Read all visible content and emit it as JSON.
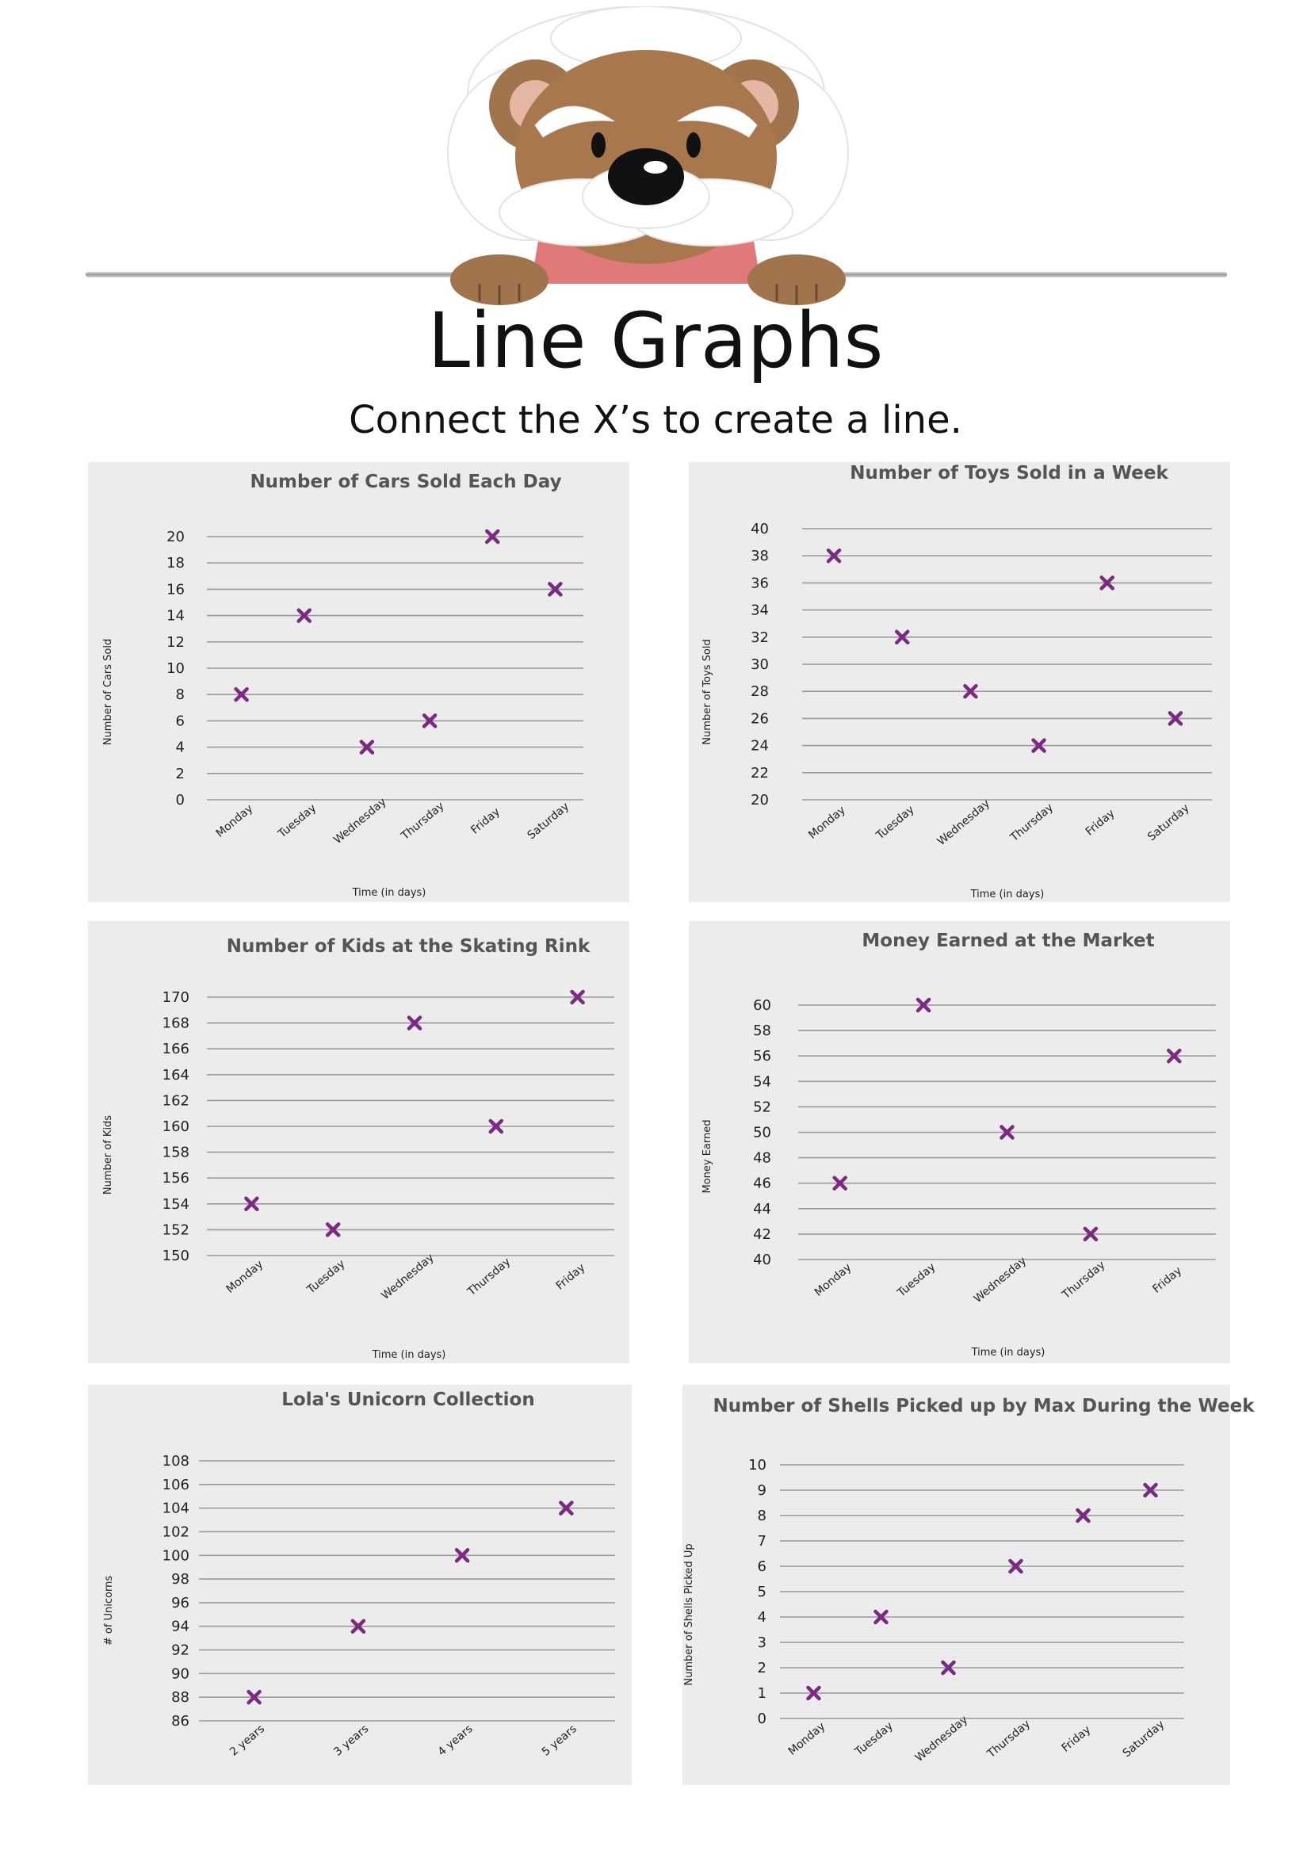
{
  "header": {
    "title": "Line Graphs",
    "subtitle": "Connect the X’s to create a line."
  },
  "colors": {
    "mark": "#7a2a80",
    "panel": "#ececec",
    "grid": "#9a9a9a"
  },
  "chart_data": [
    {
      "type": "line",
      "title": "Number of Cars Sold Each Day",
      "xlabel": "Time (in days)",
      "ylabel": "Number of Cars Sold",
      "categories": [
        "Monday",
        "Tuesday",
        "Wednesday",
        "Thursday",
        "Friday",
        "Saturday"
      ],
      "values": [
        8,
        14,
        4,
        6,
        20,
        16
      ],
      "yticks": [
        0,
        2,
        4,
        6,
        8,
        10,
        12,
        14,
        16,
        18,
        20
      ],
      "ylim": [
        0,
        20
      ],
      "grid": true
    },
    {
      "type": "line",
      "title": "Number of Toys Sold in a Week",
      "xlabel": "Time (in days)",
      "ylabel": "Number of Toys Sold",
      "categories": [
        "Monday",
        "Tuesday",
        "Wednesday",
        "Thursday",
        "Friday",
        "Saturday"
      ],
      "values": [
        38,
        32,
        28,
        24,
        36,
        26
      ],
      "yticks": [
        20,
        22,
        24,
        26,
        28,
        30,
        32,
        34,
        36,
        38,
        40
      ],
      "ylim": [
        20,
        40
      ],
      "grid": true
    },
    {
      "type": "line",
      "title": "Number of Kids at the Skating Rink",
      "xlabel": "Time (in days)",
      "ylabel": "Number of Kids",
      "categories": [
        "Monday",
        "Tuesday",
        "Wednesday",
        "Thursday",
        "Friday"
      ],
      "values": [
        154,
        152,
        168,
        160,
        170
      ],
      "yticks": [
        150,
        152,
        154,
        156,
        158,
        160,
        162,
        164,
        166,
        168,
        170
      ],
      "ylim": [
        150,
        170
      ],
      "grid": true
    },
    {
      "type": "line",
      "title": "Money Earned at the Market",
      "xlabel": "Time (in days)",
      "ylabel": "Money Earned",
      "categories": [
        "Monday",
        "Tuesday",
        "Wednesday",
        "Thursday",
        "Friday"
      ],
      "values": [
        46,
        60,
        50,
        42,
        56
      ],
      "yticks": [
        40,
        42,
        44,
        46,
        48,
        50,
        52,
        54,
        56,
        58,
        60
      ],
      "ylim": [
        40,
        60
      ],
      "grid": true
    },
    {
      "type": "line",
      "title": "Lola's Unicorn Collection",
      "xlabel": "",
      "ylabel": "# of Unicorns",
      "categories": [
        "2 years",
        "3 years",
        "4 years",
        "5 years"
      ],
      "values": [
        88,
        94,
        100,
        104
      ],
      "yticks": [
        86,
        88,
        90,
        92,
        94,
        96,
        98,
        100,
        102,
        104,
        106,
        108
      ],
      "ylim": [
        86,
        108
      ],
      "grid": true
    },
    {
      "type": "line",
      "title": "Number of Shells Picked up by Max During the Week",
      "xlabel": "",
      "ylabel": "Number of Shells Picked Up",
      "categories": [
        "Monday",
        "Tuesday",
        "Wednesday",
        "Thursday",
        "Friday",
        "Saturday"
      ],
      "values": [
        1,
        4,
        2,
        6,
        8,
        9
      ],
      "yticks": [
        0,
        1,
        2,
        3,
        4,
        5,
        6,
        7,
        8,
        9,
        10
      ],
      "ylim": [
        0,
        10
      ],
      "grid": true
    }
  ]
}
